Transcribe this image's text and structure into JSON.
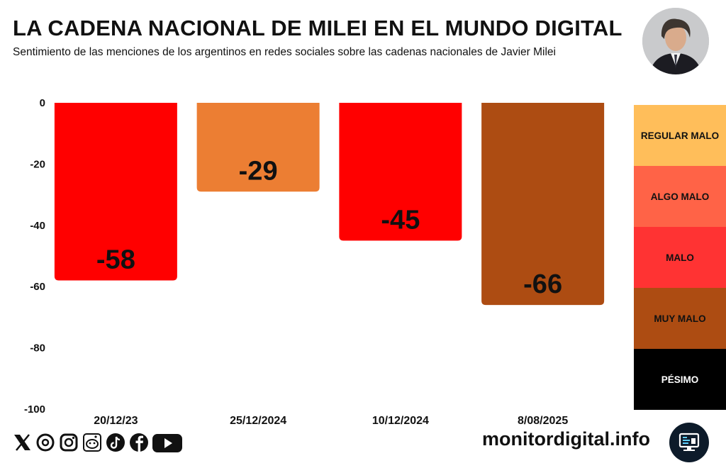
{
  "header": {
    "title": "LA CADENA NACIONAL DE MILEI EN EL MUNDO DIGITAL",
    "subtitle": "Sentimiento de las menciones de los argentinos en redes sociales sobre las cadenas nacionales de Javier Milei"
  },
  "chart_data": {
    "type": "bar",
    "title": "LA CADENA NACIONAL DE MILEI EN EL MUNDO DIGITAL",
    "subtitle": "Sentimiento de las menciones de los argentinos en redes sociales sobre las cadenas nacionales de Javier Milei",
    "categories": [
      "20/12/23",
      "25/12/2024",
      "10/12/2024",
      "8/08/2025"
    ],
    "values": [
      -58,
      -29,
      -45,
      -66
    ],
    "value_labels": [
      "-58",
      "-29",
      "-45",
      "-66"
    ],
    "bar_colors": [
      "#ff0000",
      "#ec7e33",
      "#ff0000",
      "#ad4c12"
    ],
    "xlabel": "",
    "ylabel": "",
    "ylim": [
      -100,
      0
    ],
    "yticks": [
      0,
      -20,
      -40,
      -60,
      -80,
      -100
    ],
    "ytick_labels": [
      "0",
      "-20",
      "-40",
      "-60",
      "-80",
      "-100"
    ],
    "grid": false,
    "legend_position": "right",
    "legend": [
      {
        "label": "REGULAR MALO",
        "color": "#ffbe5a"
      },
      {
        "label": "ALGO MALO",
        "color": "#ff6347"
      },
      {
        "label": "MALO",
        "color": "#ff3333"
      },
      {
        "label": "MUY MALO",
        "color": "#ad4c12"
      },
      {
        "label": "PÉSIMO",
        "color": "#000000",
        "text_color": "#ffffff"
      }
    ]
  },
  "footer": {
    "site": "monitordigital.info",
    "social_icons": [
      "x-icon",
      "threads-icon",
      "instagram-icon",
      "reddit-icon",
      "tiktok-icon",
      "facebook-icon",
      "youtube-icon"
    ]
  }
}
